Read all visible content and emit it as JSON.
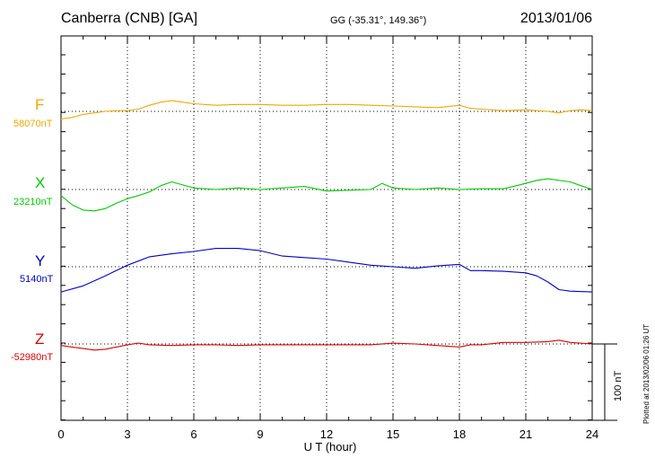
{
  "header": {
    "station": "Canberra (CNB)  [GA]",
    "coords": "GG (-35.31°, 149.36°)",
    "date": "2013/01/06"
  },
  "footer": {
    "plotted": "Plotted at 2013/02/06 01:26 UT",
    "scale_label": "100 nT"
  },
  "channels": [
    {
      "name": "F",
      "base": "58070nT",
      "color": "#f0a800"
    },
    {
      "name": "X",
      "base": "23210nT",
      "color": "#00cc00"
    },
    {
      "name": "Y",
      "base": "5140nT",
      "color": "#0000cc"
    },
    {
      "name": "Z",
      "base": "-52980nT",
      "color": "#dd0000"
    }
  ],
  "chart_data": {
    "type": "line",
    "xlabel": "U T (hour)",
    "xlim": [
      0,
      24
    ],
    "xticks": [
      "0",
      "3",
      "6",
      "9",
      "12",
      "15",
      "18",
      "21",
      "24"
    ],
    "grid": true,
    "scale_bar_nT": 100,
    "series": [
      {
        "name": "F",
        "baseline_nT": 58070,
        "x": [
          0,
          0.5,
          1,
          1.5,
          2,
          2.5,
          3,
          3.5,
          4,
          4.5,
          5,
          5.5,
          6,
          7,
          8,
          9,
          10,
          11,
          12,
          13,
          14,
          15,
          16,
          17,
          18,
          18.5,
          19,
          20,
          21,
          22,
          22.5,
          23,
          23.5,
          24
        ],
        "y": [
          -10,
          -8,
          -4,
          -2,
          0,
          1,
          1,
          3,
          8,
          12,
          14,
          12,
          10,
          8,
          9,
          9,
          8,
          8,
          9,
          9,
          8,
          7,
          6,
          5,
          8,
          4,
          3,
          1,
          2,
          0,
          -2,
          1,
          2,
          1
        ]
      },
      {
        "name": "X",
        "baseline_nT": 23210,
        "x": [
          0,
          0.5,
          1,
          1.5,
          2,
          2.5,
          3,
          3.5,
          4,
          4.5,
          5,
          5.5,
          6,
          7,
          8,
          9,
          10,
          11,
          12,
          13,
          14,
          14.5,
          15,
          16,
          17,
          18,
          19,
          20,
          21,
          21.5,
          22,
          23,
          23.5,
          24
        ],
        "y": [
          -8,
          -20,
          -27,
          -28,
          -25,
          -18,
          -12,
          -8,
          -3,
          5,
          10,
          6,
          2,
          0,
          2,
          0,
          2,
          4,
          -2,
          -1,
          0,
          8,
          2,
          0,
          2,
          0,
          1,
          1,
          8,
          12,
          14,
          10,
          5,
          0
        ]
      },
      {
        "name": "Y",
        "baseline_nT": 5140,
        "x": [
          0,
          1,
          2,
          3,
          4,
          5,
          6,
          7,
          8,
          9,
          10,
          11,
          12,
          13,
          14,
          15,
          16,
          17,
          18,
          18.5,
          19,
          20,
          21,
          21.5,
          22,
          22.5,
          23,
          24
        ],
        "y": [
          -33,
          -25,
          -12,
          2,
          13,
          17,
          20,
          24,
          24,
          21,
          14,
          12,
          10,
          6,
          2,
          0,
          -2,
          1,
          3,
          -5,
          -5,
          -6,
          -8,
          -12,
          -20,
          -30,
          -32,
          -33
        ]
      },
      {
        "name": "Z",
        "baseline_nT": -52980,
        "x": [
          0,
          0.5,
          1,
          1.5,
          2,
          2.5,
          3,
          3.5,
          4,
          5,
          6,
          7,
          8,
          9,
          10,
          11,
          12,
          13,
          14,
          15,
          16,
          17,
          18,
          18.5,
          19,
          20,
          21,
          22,
          22.5,
          23,
          24
        ],
        "y": [
          -2,
          -4,
          -6,
          -8,
          -7,
          -4,
          -1,
          1,
          -1,
          -2,
          -1,
          -1,
          -2,
          -1,
          -1,
          -1,
          -1,
          -1,
          -1,
          1,
          0,
          -2,
          -4,
          -1,
          -1,
          2,
          2,
          3,
          5,
          2,
          0
        ]
      }
    ]
  }
}
